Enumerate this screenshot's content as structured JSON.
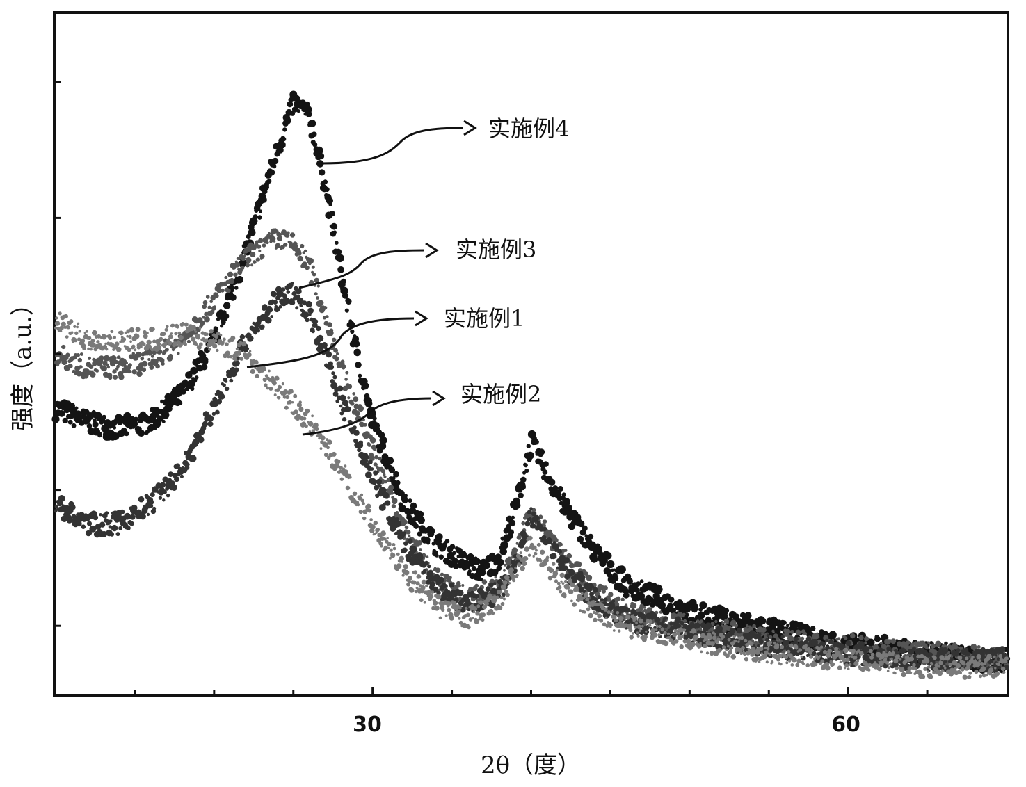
{
  "chart_data": {
    "type": "scatter",
    "xlabel": "2θ（度）",
    "ylabel": "强度（a.u.）",
    "xlim": [
      10,
      70
    ],
    "ylim": [
      0,
      100
    ],
    "x_ticks": [
      30,
      60
    ],
    "y_ticks_labeled": false,
    "grid": false,
    "legend": "none",
    "series": [
      {
        "name": "实施例4",
        "color": "#141414",
        "x": [
          10,
          12,
          14,
          16,
          18,
          20,
          22,
          24,
          25,
          26,
          27,
          28,
          29,
          30,
          32,
          34,
          36,
          37,
          38,
          39,
          40,
          42,
          44,
          46,
          48,
          50,
          52,
          54,
          56,
          58,
          60,
          62,
          64,
          66,
          68,
          70
        ],
        "values": [
          42,
          40,
          39,
          40,
          44,
          52,
          65,
          80,
          87,
          85,
          75,
          62,
          50,
          40,
          28,
          22,
          19,
          18,
          20,
          27,
          37,
          28,
          21,
          16,
          14,
          12,
          11,
          10,
          9,
          8,
          7,
          7,
          6,
          6,
          5,
          5
        ]
      },
      {
        "name": "实施例3",
        "color": "#555555",
        "x": [
          10,
          12,
          14,
          16,
          18,
          20,
          22,
          24,
          25,
          26,
          27,
          28,
          30,
          32,
          34,
          36,
          38,
          39,
          40,
          42,
          44,
          46,
          50,
          55,
          60,
          65,
          70
        ],
        "values": [
          50,
          48,
          48,
          49,
          52,
          58,
          64,
          67,
          66,
          63,
          56,
          48,
          36,
          24,
          17,
          14,
          16,
          20,
          27,
          20,
          15,
          12,
          10,
          8,
          7,
          6,
          5
        ]
      },
      {
        "name": "实施例1",
        "color": "#333333",
        "x": [
          10,
          12,
          14,
          16,
          18,
          20,
          22,
          24,
          25,
          26,
          27,
          28,
          30,
          32,
          34,
          36,
          38,
          39,
          40,
          42,
          44,
          46,
          50,
          55,
          60,
          65,
          70
        ],
        "values": [
          28,
          25,
          25,
          28,
          33,
          42,
          52,
          58,
          59,
          56,
          50,
          43,
          32,
          22,
          16,
          13,
          15,
          19,
          26,
          19,
          14,
          11,
          9,
          7,
          6,
          5,
          5
        ]
      },
      {
        "name": "实施例2",
        "color": "#7a7a7a",
        "x": [
          10,
          12,
          14,
          16,
          18,
          20,
          22,
          24,
          26,
          28,
          30,
          32,
          34,
          36,
          38,
          39,
          40,
          42,
          44,
          46,
          50,
          55,
          60,
          65,
          70
        ],
        "values": [
          55,
          52,
          52,
          52,
          53,
          52,
          50,
          45,
          40,
          33,
          25,
          18,
          13,
          11,
          14,
          18,
          22,
          16,
          12,
          10,
          8,
          6,
          5,
          4,
          4
        ]
      }
    ],
    "annotations": [
      "实施例4",
      "实施例3",
      "实施例1",
      "实施例2"
    ]
  }
}
